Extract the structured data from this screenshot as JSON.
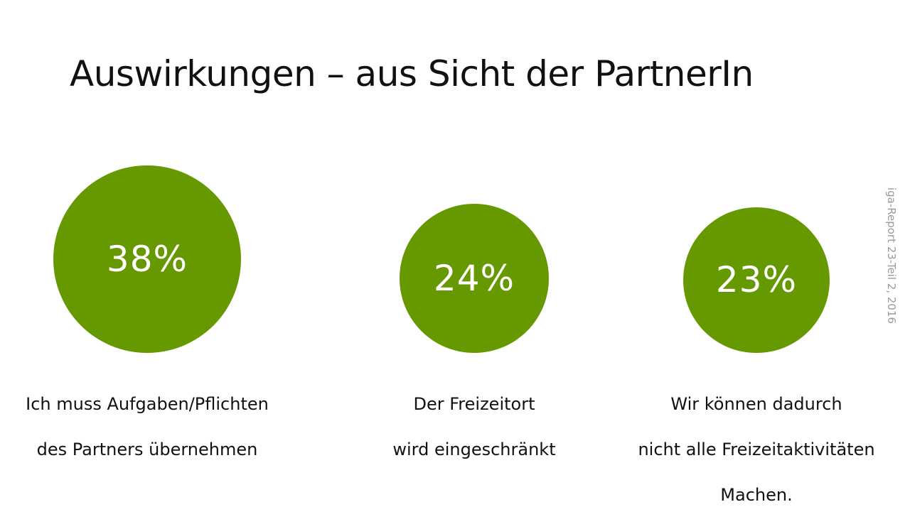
{
  "title": "Auswirkungen – aus Sicht der PartnerIn",
  "source": "iga-Report 23-Teil 2, 2016",
  "colors": {
    "circle": "#669900",
    "text": "#111111",
    "source": "#9a9a9a"
  },
  "chart_data": {
    "type": "bubble",
    "title": "Auswirkungen – aus Sicht der PartnerIn",
    "unit": "%",
    "items": [
      {
        "label_lines": [
          "Ich muss Aufgaben/Pflichten",
          "des Partners übernehmen"
        ],
        "value": 38,
        "display": "38%"
      },
      {
        "label_lines": [
          "Der Freizeitort",
          "wird eingeschränkt"
        ],
        "value": 24,
        "display": "24%"
      },
      {
        "label_lines": [
          "Wir können dadurch",
          "nicht alle Freizeitaktivitäten",
          "Machen."
        ],
        "value": 23,
        "display": "23%"
      }
    ]
  }
}
